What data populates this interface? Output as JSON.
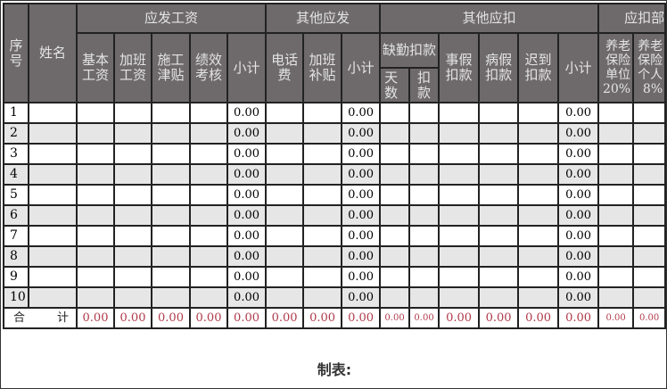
{
  "header": {
    "seq": "序号",
    "name": "姓名",
    "group_pay": "应发工资",
    "group_other_pay": "其他应发",
    "group_other_deduct": "其他应扣",
    "group_deduct": "应扣部",
    "basic": "基本工资",
    "overtime": "加班工资",
    "site_allowance": "施工津贴",
    "performance": "绩效考核",
    "subtotal": "小计",
    "phone": "电话费",
    "overtime_allowance": "加班补贴",
    "absence": "缺勤扣款",
    "days": "天数",
    "deduction": "扣款",
    "personal_leave": "事假扣款",
    "sick_leave": "病假扣款",
    "late": "迟到扣款",
    "pension_unit": "养老保险单位20%",
    "pension_personal": "养老保险个人8%"
  },
  "rows": [
    {
      "seq": "1",
      "subtotal1": "0.00",
      "subtotal2": "0.00",
      "subtotal3": "0.00"
    },
    {
      "seq": "2",
      "subtotal1": "0.00",
      "subtotal2": "0.00",
      "subtotal3": "0.00"
    },
    {
      "seq": "3",
      "subtotal1": "0.00",
      "subtotal2": "0.00",
      "subtotal3": "0.00"
    },
    {
      "seq": "4",
      "subtotal1": "0.00",
      "subtotal2": "0.00",
      "subtotal3": "0.00"
    },
    {
      "seq": "5",
      "subtotal1": "0.00",
      "subtotal2": "0.00",
      "subtotal3": "0.00"
    },
    {
      "seq": "6",
      "subtotal1": "0.00",
      "subtotal2": "0.00",
      "subtotal3": "0.00"
    },
    {
      "seq": "7",
      "subtotal1": "0.00",
      "subtotal2": "0.00",
      "subtotal3": "0.00"
    },
    {
      "seq": "8",
      "subtotal1": "0.00",
      "subtotal2": "0.00",
      "subtotal3": "0.00"
    },
    {
      "seq": "9",
      "subtotal1": "0.00",
      "subtotal2": "0.00",
      "subtotal3": "0.00"
    },
    {
      "seq": "10",
      "subtotal1": "0.00",
      "subtotal2": "0.00",
      "subtotal3": "0.00"
    }
  ],
  "total": {
    "label_a": "合",
    "label_b": "计",
    "values": [
      "0.00",
      "0.00",
      "0.00",
      "0.00",
      "0.00",
      "0.00",
      "0.00",
      "0.00",
      "0.00",
      "0.00",
      "0.00",
      "0.00",
      "0.00",
      "0.00",
      "0.00",
      "0.00"
    ]
  },
  "footer": {
    "prepared_by": "制表:"
  },
  "colors": {
    "header_bg": "#6e6a6b",
    "alt_row": "#e6e6e6",
    "total_text": "#b03a4a"
  }
}
